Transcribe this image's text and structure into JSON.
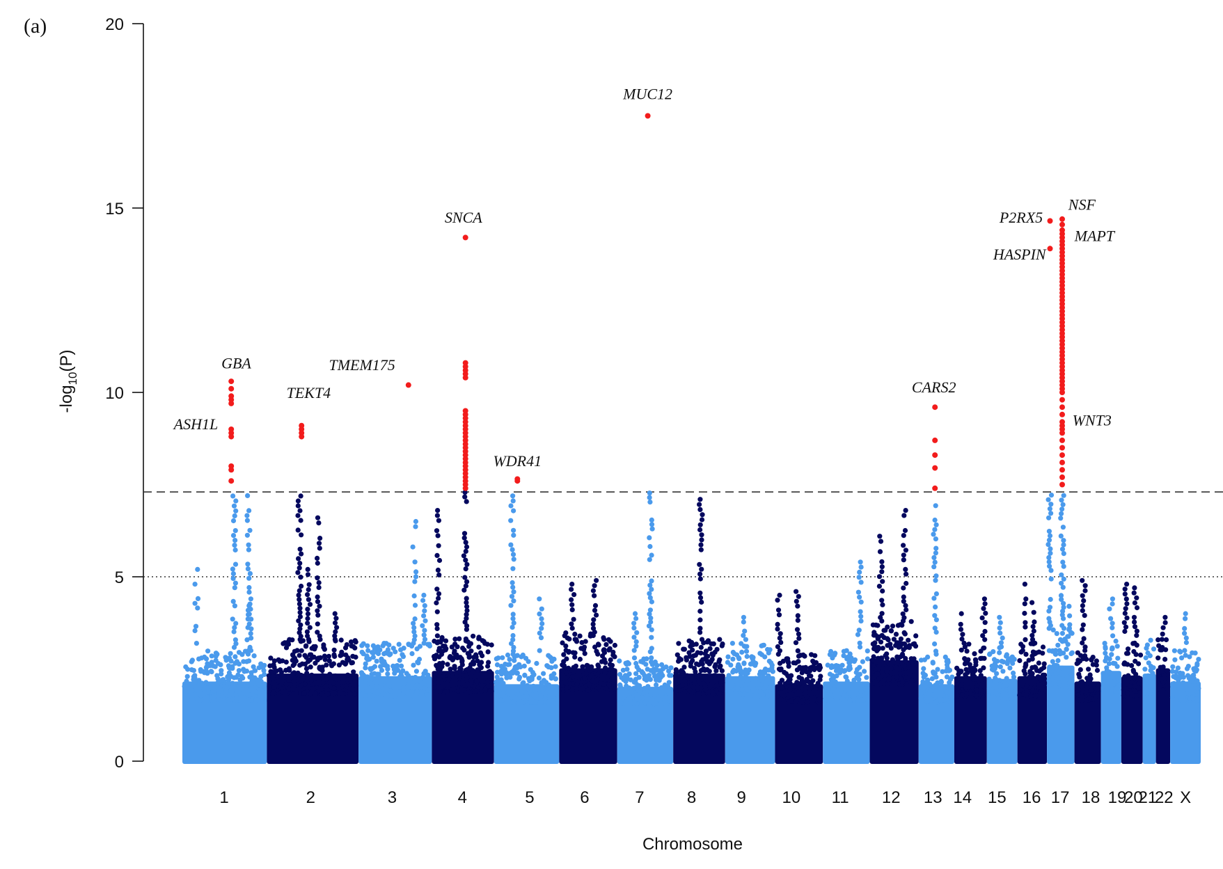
{
  "panel_label": "(a)",
  "colors": {
    "light": "#4a9aec",
    "dark": "#04085e",
    "hit": "#f21c1c",
    "axis": "#111111"
  },
  "chart_data": {
    "type": "scatter",
    "subtype": "manhattan",
    "xlabel": "Chromosome",
    "ylabel_main": "-log",
    "ylabel_sub": "10",
    "ylabel_tail": "(P)",
    "ylim": [
      0,
      20
    ],
    "yticks": [
      0,
      5,
      10,
      15,
      20
    ],
    "thresholds": [
      {
        "value": 7.3,
        "style": "dashed"
      },
      {
        "value": 5.0,
        "style": "dotted"
      }
    ],
    "chromosomes": [
      {
        "label": "1",
        "start": 0.0,
        "end": 0.083,
        "color": "light",
        "baseline_max": 3.0,
        "spikes": [
          {
            "pos": 0.014,
            "max": 5.2
          },
          {
            "pos": 0.051,
            "max": 7.6
          },
          {
            "pos": 0.067,
            "max": 4.4
          },
          {
            "pos": 0.065,
            "max": 7.2
          }
        ]
      },
      {
        "label": "2",
        "start": 0.083,
        "end": 0.173,
        "color": "dark",
        "baseline_max": 3.3,
        "spikes": [
          {
            "pos": 0.115,
            "max": 9.1
          },
          {
            "pos": 0.124,
            "max": 5.2
          },
          {
            "pos": 0.134,
            "max": 6.6
          },
          {
            "pos": 0.15,
            "max": 4.0
          }
        ]
      },
      {
        "label": "3",
        "start": 0.173,
        "end": 0.245,
        "color": "light",
        "baseline_max": 3.2,
        "spikes": [
          {
            "pos": 0.228,
            "max": 6.5
          },
          {
            "pos": 0.237,
            "max": 4.5
          }
        ]
      },
      {
        "label": "4",
        "start": 0.245,
        "end": 0.306,
        "color": "dark",
        "baseline_max": 3.4,
        "spikes": [
          {
            "pos": 0.251,
            "max": 6.8
          },
          {
            "pos": 0.278,
            "max": 14.2
          }
        ]
      },
      {
        "label": "5",
        "start": 0.306,
        "end": 0.37,
        "color": "light",
        "baseline_max": 2.9,
        "spikes": [
          {
            "pos": 0.324,
            "max": 7.6
          },
          {
            "pos": 0.352,
            "max": 4.4
          }
        ]
      },
      {
        "label": "6",
        "start": 0.37,
        "end": 0.427,
        "color": "dark",
        "baseline_max": 3.5,
        "spikes": [
          {
            "pos": 0.383,
            "max": 4.8
          },
          {
            "pos": 0.405,
            "max": 4.9
          }
        ]
      },
      {
        "label": "7",
        "start": 0.427,
        "end": 0.482,
        "color": "light",
        "baseline_max": 2.8,
        "spikes": [
          {
            "pos": 0.46,
            "max": 17.5
          },
          {
            "pos": 0.445,
            "max": 4.0
          }
        ]
      },
      {
        "label": "8",
        "start": 0.482,
        "end": 0.533,
        "color": "dark",
        "baseline_max": 3.3,
        "spikes": [
          {
            "pos": 0.509,
            "max": 7.1
          }
        ]
      },
      {
        "label": "9",
        "start": 0.533,
        "end": 0.582,
        "color": "light",
        "baseline_max": 3.2,
        "spikes": [
          {
            "pos": 0.552,
            "max": 3.9
          }
        ]
      },
      {
        "label": "10",
        "start": 0.582,
        "end": 0.629,
        "color": "dark",
        "baseline_max": 2.9,
        "spikes": [
          {
            "pos": 0.586,
            "max": 4.5
          },
          {
            "pos": 0.604,
            "max": 4.6
          }
        ]
      },
      {
        "label": "11",
        "start": 0.629,
        "end": 0.675,
        "color": "light",
        "baseline_max": 3.0,
        "spikes": [
          {
            "pos": 0.665,
            "max": 5.4
          }
        ]
      },
      {
        "label": "12",
        "start": 0.675,
        "end": 0.723,
        "color": "dark",
        "baseline_max": 3.8,
        "spikes": [
          {
            "pos": 0.686,
            "max": 6.1
          },
          {
            "pos": 0.709,
            "max": 6.8
          }
        ]
      },
      {
        "label": "13",
        "start": 0.723,
        "end": 0.758,
        "color": "light",
        "baseline_max": 2.9,
        "spikes": [
          {
            "pos": 0.739,
            "max": 9.6
          }
        ]
      },
      {
        "label": "14",
        "start": 0.758,
        "end": 0.79,
        "color": "dark",
        "baseline_max": 3.2,
        "spikes": [
          {
            "pos": 0.766,
            "max": 4.0
          },
          {
            "pos": 0.787,
            "max": 4.4
          }
        ]
      },
      {
        "label": "15",
        "start": 0.79,
        "end": 0.82,
        "color": "light",
        "baseline_max": 3.1,
        "spikes": [
          {
            "pos": 0.804,
            "max": 3.9
          }
        ]
      },
      {
        "label": "16",
        "start": 0.82,
        "end": 0.849,
        "color": "dark",
        "baseline_max": 3.2,
        "spikes": [
          {
            "pos": 0.828,
            "max": 4.8
          },
          {
            "pos": 0.836,
            "max": 4.3
          }
        ]
      },
      {
        "label": "17",
        "start": 0.849,
        "end": 0.876,
        "color": "light",
        "baseline_max": 3.6,
        "spikes": [
          {
            "pos": 0.852,
            "max": 14.6
          },
          {
            "pos": 0.864,
            "max": 14.7
          },
          {
            "pos": 0.872,
            "max": 4.2
          }
        ]
      },
      {
        "label": "18",
        "start": 0.876,
        "end": 0.902,
        "color": "dark",
        "baseline_max": 3.0,
        "spikes": [
          {
            "pos": 0.885,
            "max": 4.9
          }
        ]
      },
      {
        "label": "19",
        "start": 0.902,
        "end": 0.922,
        "color": "light",
        "baseline_max": 3.4,
        "spikes": [
          {
            "pos": 0.912,
            "max": 4.4
          }
        ]
      },
      {
        "label": "20",
        "start": 0.922,
        "end": 0.943,
        "color": "dark",
        "baseline_max": 3.2,
        "spikes": [
          {
            "pos": 0.926,
            "max": 4.8
          },
          {
            "pos": 0.936,
            "max": 4.7
          }
        ]
      },
      {
        "label": "21",
        "start": 0.943,
        "end": 0.956,
        "color": "light",
        "baseline_max": 3.3,
        "spikes": []
      },
      {
        "label": "22",
        "start": 0.956,
        "end": 0.97,
        "color": "dark",
        "baseline_max": 3.5,
        "spikes": [
          {
            "pos": 0.964,
            "max": 3.9
          }
        ]
      },
      {
        "label": "X",
        "start": 0.97,
        "end": 1.0,
        "color": "light",
        "baseline_max": 3.0,
        "spikes": [
          {
            "pos": 0.985,
            "max": 4.0
          }
        ]
      }
    ],
    "x_tick_positions": {
      "1": 0.041,
      "2": 0.126,
      "3": 0.206,
      "4": 0.275,
      "5": 0.341,
      "6": 0.395,
      "7": 0.449,
      "8": 0.5,
      "9": 0.549,
      "10": 0.598,
      "11": 0.646,
      "12": 0.696,
      "13": 0.737,
      "14": 0.766,
      "15": 0.8,
      "16": 0.834,
      "17": 0.862,
      "18": 0.892,
      "19": 0.918,
      "20": 0.934,
      "21": 0.948,
      "22": 0.964,
      "X": 0.985
    },
    "significant_points": [
      {
        "x": 0.048,
        "ys": [
          10.3,
          10.1,
          9.9,
          9.8,
          9.7
        ]
      },
      {
        "x": 0.048,
        "ys": [
          9.0,
          8.9,
          8.8
        ]
      },
      {
        "x": 0.048,
        "ys": [
          8.0,
          7.9,
          7.6
        ]
      },
      {
        "x": 0.117,
        "ys": [
          9.1,
          9.0,
          8.9,
          8.8
        ]
      },
      {
        "x": 0.222,
        "ys": [
          10.2
        ]
      },
      {
        "x": 0.278,
        "ys": [
          14.2
        ]
      },
      {
        "x": 0.278,
        "ys": [
          10.8,
          10.7,
          10.6,
          10.5,
          10.4
        ]
      },
      {
        "x": 0.278,
        "ys": [
          9.5,
          9.4,
          9.3,
          9.2,
          9.1,
          9.0,
          8.9,
          8.8,
          8.7,
          8.6,
          8.5,
          8.4,
          8.3,
          8.2,
          8.1,
          8.0,
          7.9,
          7.8,
          7.7,
          7.6,
          7.5,
          7.4
        ]
      },
      {
        "x": 0.329,
        "ys": [
          7.65,
          7.6
        ]
      },
      {
        "x": 0.457,
        "ys": [
          17.5
        ]
      },
      {
        "x": 0.739,
        "ys": [
          9.6
        ]
      },
      {
        "x": 0.739,
        "ys": [
          8.7,
          8.3,
          7.95,
          7.4
        ]
      },
      {
        "x": 0.852,
        "ys": [
          14.65
        ]
      },
      {
        "x": 0.852,
        "ys": [
          13.9
        ]
      },
      {
        "x": 0.864,
        "ys": [
          14.7,
          14.55,
          14.4,
          14.3,
          14.2,
          14.1,
          14.0,
          13.9,
          13.8,
          13.7,
          13.6,
          13.5,
          13.4,
          13.3,
          13.2,
          13.1,
          13.0,
          12.9,
          12.8,
          12.7,
          12.6,
          12.5,
          12.4,
          12.3,
          12.2,
          12.1,
          12.0,
          11.9,
          11.8,
          11.7,
          11.6,
          11.5,
          11.4,
          11.3,
          11.2,
          11.1,
          11.0,
          10.9,
          10.8,
          10.7,
          10.6,
          10.5,
          10.4,
          10.3,
          10.2,
          10.1,
          10.0,
          9.8,
          9.6,
          9.4,
          9.2,
          9.1,
          9.0,
          8.9,
          8.7,
          8.5,
          8.3,
          8.1,
          7.9,
          7.7,
          7.5
        ]
      }
    ],
    "annotations": [
      {
        "text": "GBA",
        "x": 0.053,
        "y": 10.65,
        "anchor": "middle"
      },
      {
        "text": "ASH1L",
        "x": 0.035,
        "y": 9.0,
        "anchor": "end"
      },
      {
        "text": "TEKT4",
        "x": 0.124,
        "y": 9.85,
        "anchor": "middle"
      },
      {
        "text": "TMEM175",
        "x": 0.209,
        "y": 10.6,
        "anchor": "end"
      },
      {
        "text": "SNCA",
        "x": 0.276,
        "y": 14.6,
        "anchor": "middle"
      },
      {
        "text": "WDR41",
        "x": 0.329,
        "y": 8.0,
        "anchor": "middle"
      },
      {
        "text": "MUC12",
        "x": 0.457,
        "y": 17.95,
        "anchor": "middle"
      },
      {
        "text": "CARS2",
        "x": 0.738,
        "y": 10.0,
        "anchor": "middle"
      },
      {
        "text": "P2RX5",
        "x": 0.845,
        "y": 14.6,
        "anchor": "end"
      },
      {
        "text": "NSF",
        "x": 0.87,
        "y": 14.95,
        "anchor": "start"
      },
      {
        "text": "MAPT",
        "x": 0.876,
        "y": 14.1,
        "anchor": "start"
      },
      {
        "text": "HASPIN",
        "x": 0.848,
        "y": 13.6,
        "anchor": "end"
      },
      {
        "text": "WNT3",
        "x": 0.874,
        "y": 9.1,
        "anchor": "start"
      }
    ]
  }
}
